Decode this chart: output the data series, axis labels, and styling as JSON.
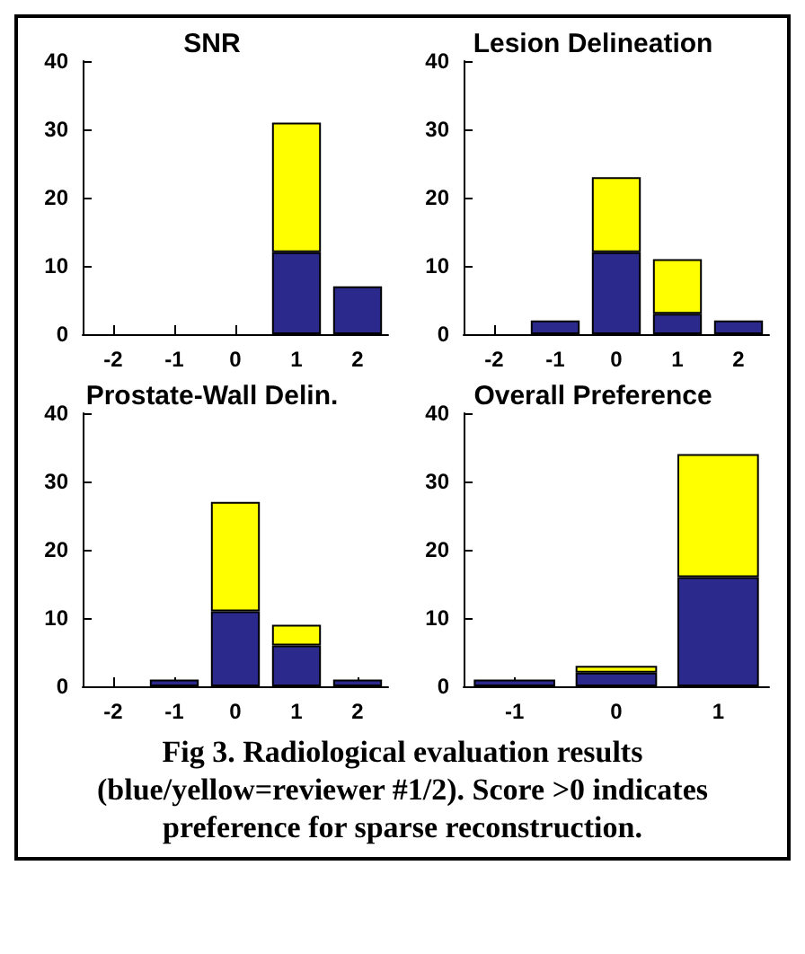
{
  "chart_data": [
    {
      "type": "bar",
      "title": "SNR",
      "categories": [
        "-2",
        "-1",
        "0",
        "1",
        "2"
      ],
      "stacked": true,
      "ylim": [
        0,
        40
      ],
      "yticks": [
        0,
        10,
        20,
        30,
        40
      ],
      "series": [
        {
          "color": "#2b2a8c",
          "values": [
            0,
            0,
            0,
            12,
            7
          ]
        },
        {
          "color": "#ffff00",
          "values": [
            0,
            0,
            0,
            19,
            0
          ]
        }
      ]
    },
    {
      "type": "bar",
      "title": "Lesion Delineation",
      "categories": [
        "-2",
        "-1",
        "0",
        "1",
        "2"
      ],
      "stacked": true,
      "ylim": [
        0,
        40
      ],
      "yticks": [
        0,
        10,
        20,
        30,
        40
      ],
      "series": [
        {
          "color": "#2b2a8c",
          "values": [
            0,
            2,
            12,
            3,
            2
          ]
        },
        {
          "color": "#ffff00",
          "values": [
            0,
            0,
            11,
            8,
            0
          ]
        }
      ]
    },
    {
      "type": "bar",
      "title": "Prostate-Wall Delin.",
      "categories": [
        "-2",
        "-1",
        "0",
        "1",
        "2"
      ],
      "stacked": true,
      "ylim": [
        0,
        40
      ],
      "yticks": [
        0,
        10,
        20,
        30,
        40
      ],
      "series": [
        {
          "color": "#2b2a8c",
          "values": [
            0,
            1,
            11,
            6,
            1
          ]
        },
        {
          "color": "#ffff00",
          "values": [
            0,
            0,
            16,
            3,
            0
          ]
        }
      ]
    },
    {
      "type": "bar",
      "title": "Overall Preference",
      "categories": [
        "-1",
        "0",
        "1"
      ],
      "stacked": true,
      "ylim": [
        0,
        40
      ],
      "yticks": [
        0,
        10,
        20,
        30,
        40
      ],
      "annotations": [
        "Fig 3.  Radiological evaluation results (blue/yellow=reviewer #1/2).  Score >0 indicates preference for sparse reconstruction."
      ],
      "series": [
        {
          "color": "#2b2a8c",
          "values": [
            1,
            2,
            16
          ]
        },
        {
          "color": "#ffff00",
          "values": [
            0,
            1,
            18
          ]
        }
      ]
    }
  ]
}
